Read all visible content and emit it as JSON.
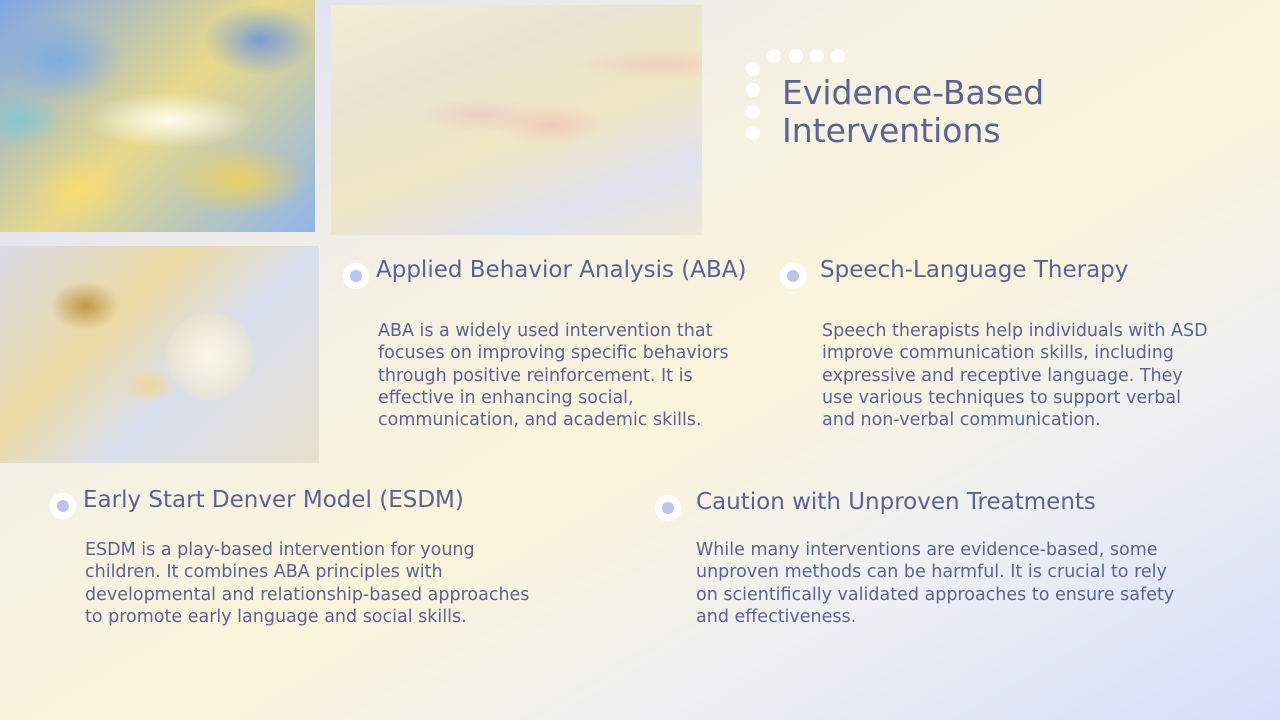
{
  "slide": {
    "title": "Evidence-Based Interventions"
  },
  "colors": {
    "text": "#5b6296",
    "bullet": "#bcc3ef"
  },
  "images": {
    "abstract": "abstract-painting-image",
    "hands": "holding-hands-image",
    "bulb": "light-bulb-image"
  },
  "sections": [
    {
      "heading": "Applied Behavior Analysis (ABA)",
      "body": "ABA is a widely used intervention that focuses on improving specific behaviors through positive reinforcement. It is effective in enhancing social, communication, and academic skills."
    },
    {
      "heading": "Speech-Language Therapy",
      "body": "Speech therapists help individuals with ASD improve communication skills, including expressive and receptive language. They use various techniques to support verbal and non-verbal communication."
    },
    {
      "heading": "Early Start Denver Model (ESDM)",
      "body": "ESDM is a play-based intervention for young children. It combines ABA principles with developmental and relationship-based approaches to promote early language and social skills."
    },
    {
      "heading": "Caution with Unproven Treatments",
      "body": "While many interventions are evidence-based, some unproven methods can be harmful. It is crucial to rely on scientifically validated approaches to ensure safety and effectiveness."
    }
  ]
}
